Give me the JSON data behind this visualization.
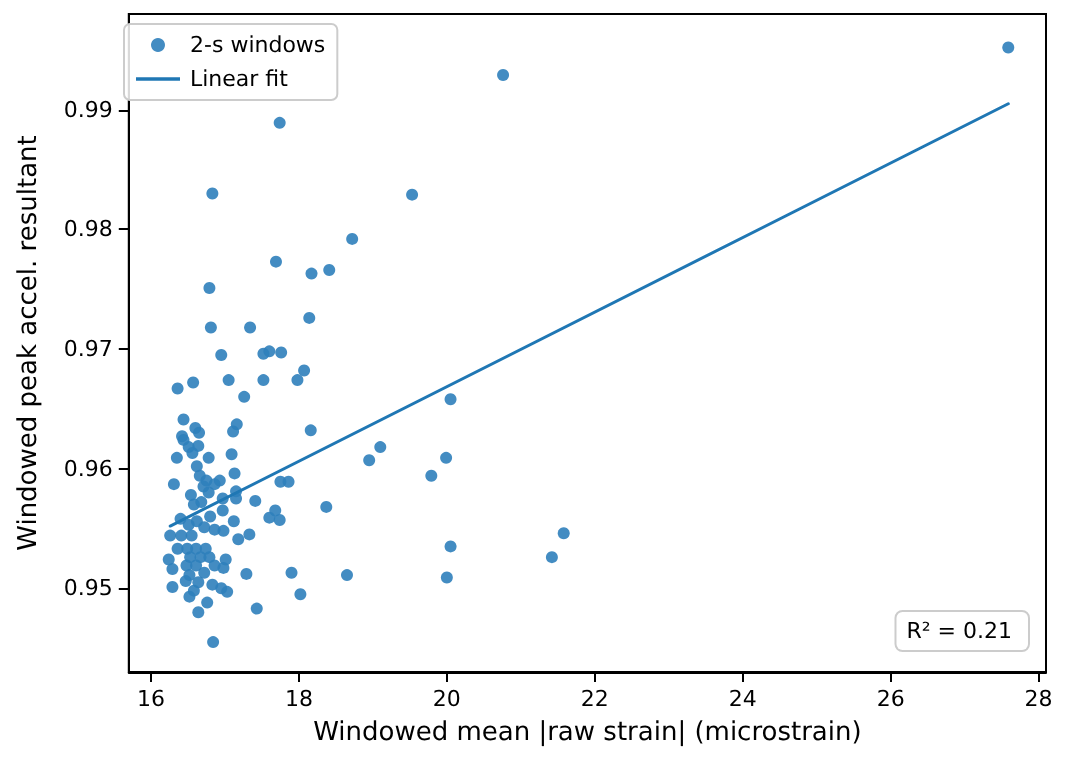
{
  "chart_data": {
    "type": "scatter",
    "xlabel": "Windowed mean |raw strain| (microstrain)",
    "ylabel": "Windowed peak accel. resultant",
    "xlim": [
      15.7,
      28.1
    ],
    "xticks": [
      16,
      18,
      20,
      22,
      24,
      26,
      28
    ],
    "ylim": [
      0.943,
      0.998
    ],
    "yticks": [
      0.95,
      0.96,
      0.97,
      0.98,
      0.99
    ],
    "grid": false,
    "legend": "top left",
    "annotations": [
      "R² = 0.21"
    ],
    "series": [
      {
        "name": "2-s windows",
        "marker": "circle",
        "color": "#2f80bb",
        "x": [
          20.76,
          17.74,
          16.83,
          19.53,
          18.72,
          17.69,
          18.41,
          18.17,
          16.79,
          18.14,
          16.81,
          17.34,
          16.95,
          17.6,
          17.52,
          17.76,
          18.07,
          17.98,
          17.52,
          17.05,
          16.57,
          16.36,
          17.26,
          20.05,
          18.16,
          17.16,
          17.11,
          16.44,
          16.6,
          16.65,
          16.42,
          16.44,
          16.64,
          16.51,
          16.56,
          17.09,
          16.35,
          16.78,
          19.1,
          18.95,
          19.99,
          19.79,
          16.62,
          17.13,
          16.66,
          16.75,
          16.93,
          16.31,
          16.86,
          16.71,
          17.75,
          17.86,
          17.15,
          16.78,
          16.54,
          16.97,
          17.15,
          17.41,
          16.68,
          18.37,
          16.58,
          17.68,
          16.97,
          17.6,
          17.74,
          16.4,
          16.8,
          16.62,
          17.12,
          16.51,
          16.72,
          16.86,
          16.98,
          16.26,
          16.41,
          16.55,
          17.33,
          17.18,
          16.36,
          16.49,
          16.61,
          16.74,
          20.05,
          16.53,
          16.67,
          16.79,
          16.24,
          16.86,
          17.01,
          16.48,
          16.61,
          16.29,
          17.9,
          18.65,
          17.29,
          16.72,
          16.52,
          16.98,
          20.0,
          16.47,
          16.64,
          16.83,
          16.29,
          16.95,
          17.03,
          16.58,
          16.52,
          18.02,
          16.76,
          16.64,
          17.43,
          16.84,
          21.42,
          21.58,
          27.59
        ],
        "values": [
          0.9929,
          0.9889,
          0.983,
          0.9829,
          0.9792,
          0.9773,
          0.9766,
          0.9763,
          0.9751,
          0.9726,
          0.9718,
          0.9718,
          0.9695,
          0.9698,
          0.9696,
          0.9697,
          0.9682,
          0.9674,
          0.9674,
          0.9674,
          0.9672,
          0.9667,
          0.966,
          0.9658,
          0.9632,
          0.9637,
          0.9631,
          0.9641,
          0.9634,
          0.963,
          0.9627,
          0.9624,
          0.9619,
          0.9618,
          0.9613,
          0.9612,
          0.9609,
          0.9609,
          0.9618,
          0.9607,
          0.9609,
          0.9594,
          0.9602,
          0.9596,
          0.9594,
          0.959,
          0.959,
          0.9587,
          0.9587,
          0.9585,
          0.9589,
          0.9589,
          0.9581,
          0.958,
          0.9578,
          0.9575,
          0.9575,
          0.9573,
          0.9572,
          0.9568,
          0.957,
          0.9565,
          0.9565,
          0.9559,
          0.9557,
          0.9558,
          0.956,
          0.9556,
          0.9556,
          0.9553,
          0.9551,
          0.9549,
          0.9548,
          0.9544,
          0.9544,
          0.9544,
          0.9545,
          0.9541,
          0.9533,
          0.9533,
          0.9533,
          0.9533,
          0.9535,
          0.9526,
          0.9526,
          0.9526,
          0.9524,
          0.9519,
          0.9524,
          0.9519,
          0.9519,
          0.9516,
          0.9513,
          0.9511,
          0.9512,
          0.9513,
          0.9511,
          0.9517,
          0.9509,
          0.9506,
          0.9505,
          0.9503,
          0.9501,
          0.95,
          0.9497,
          0.9498,
          0.9493,
          0.9495,
          0.9488,
          0.948,
          0.9483,
          0.9455,
          0.9526,
          0.9546,
          0.9952
        ]
      },
      {
        "name": "Linear fit",
        "type": "line",
        "marker": "none",
        "line_style": "solid",
        "color": "#1f77b4",
        "x": [
          16.26,
          27.59
        ],
        "values": [
          0.9552,
          0.9905
        ]
      }
    ]
  }
}
